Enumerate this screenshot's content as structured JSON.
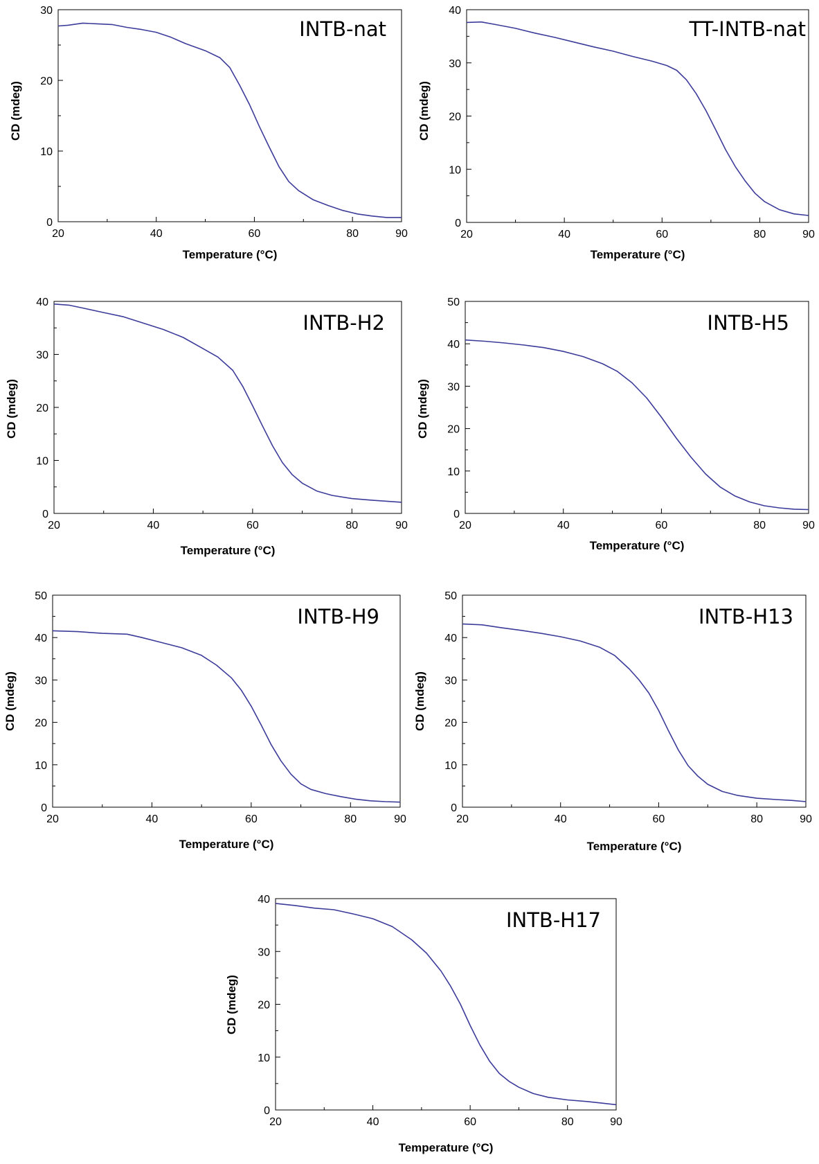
{
  "chart_data": [
    {
      "type": "line",
      "title": "INTB-nat",
      "xlabel": "Temperature (°C)",
      "ylabel": "CD (mdeg)",
      "xlim": [
        20,
        90
      ],
      "ylim": [
        0,
        30
      ],
      "xticks": [
        20,
        40,
        60,
        80,
        90
      ],
      "yticks": [
        0,
        10,
        20,
        30
      ],
      "line_color": "#3b3b9a",
      "series": [
        {
          "x": [
            20,
            22,
            25,
            28,
            31,
            34,
            37,
            40,
            43,
            46,
            50,
            53,
            55,
            57,
            59,
            61,
            63,
            65,
            67,
            69,
            72,
            75,
            78,
            81,
            84,
            87,
            90
          ],
          "values": [
            27.7,
            27.8,
            28.1,
            28.0,
            27.9,
            27.5,
            27.2,
            26.8,
            26.1,
            25.2,
            24.2,
            23.2,
            21.8,
            19.3,
            16.6,
            13.5,
            10.6,
            7.8,
            5.7,
            4.4,
            3.1,
            2.3,
            1.6,
            1.1,
            0.8,
            0.6,
            0.6
          ]
        }
      ]
    },
    {
      "type": "line",
      "title": "TT-INTB-nat",
      "xlabel": "Temperature (°C)",
      "ylabel": "CD (mdeg)",
      "xlim": [
        20,
        90
      ],
      "ylim": [
        0,
        40
      ],
      "xticks": [
        20,
        40,
        60,
        80,
        90
      ],
      "yticks": [
        0,
        10,
        20,
        30,
        40
      ],
      "line_color": "#3b3b9a",
      "series": [
        {
          "x": [
            20,
            23,
            26,
            30,
            34,
            38,
            42,
            46,
            50,
            54,
            58,
            61,
            63,
            65,
            67,
            69,
            71,
            73,
            75,
            77,
            79,
            81,
            84,
            87,
            90
          ],
          "values": [
            37.6,
            37.7,
            37.2,
            36.5,
            35.6,
            34.8,
            33.9,
            33.0,
            32.2,
            31.2,
            30.3,
            29.5,
            28.6,
            26.8,
            24.2,
            21.0,
            17.4,
            13.7,
            10.5,
            7.8,
            5.5,
            3.9,
            2.4,
            1.6,
            1.3
          ]
        }
      ]
    },
    {
      "type": "line",
      "title": "INTB-H2",
      "xlabel": "Temperature (°C)",
      "ylabel": "CD (mdeg)",
      "xlim": [
        20,
        90
      ],
      "ylim": [
        0,
        40
      ],
      "xticks": [
        20,
        40,
        60,
        80,
        90
      ],
      "yticks": [
        0,
        10,
        20,
        30,
        40
      ],
      "line_color": "#3b3b9a",
      "series": [
        {
          "x": [
            20,
            23,
            26,
            30,
            34,
            38,
            42,
            46,
            50,
            53,
            56,
            58,
            60,
            62,
            64,
            66,
            68,
            70,
            73,
            76,
            80,
            84,
            87,
            90
          ],
          "values": [
            39.5,
            39.3,
            38.7,
            37.9,
            37.1,
            35.9,
            34.7,
            33.2,
            31.1,
            29.5,
            27.0,
            24.0,
            20.3,
            16.5,
            12.8,
            9.6,
            7.3,
            5.7,
            4.2,
            3.4,
            2.8,
            2.5,
            2.3,
            2.1
          ]
        }
      ]
    },
    {
      "type": "line",
      "title": "INTB-H5",
      "xlabel": "Temperature (°C)",
      "ylabel": "CD (mdeg)",
      "xlim": [
        20,
        90
      ],
      "ylim": [
        0,
        50
      ],
      "xticks": [
        20,
        40,
        60,
        80,
        90
      ],
      "yticks": [
        0,
        10,
        20,
        30,
        40,
        50
      ],
      "line_color": "#3b3b9a",
      "series": [
        {
          "x": [
            20,
            24,
            28,
            32,
            36,
            40,
            44,
            48,
            51,
            54,
            57,
            60,
            63,
            66,
            69,
            72,
            75,
            78,
            81,
            84,
            87,
            90
          ],
          "values": [
            40.9,
            40.6,
            40.2,
            39.7,
            39.1,
            38.2,
            37.0,
            35.3,
            33.5,
            30.8,
            27.2,
            22.7,
            17.8,
            13.3,
            9.3,
            6.2,
            4.1,
            2.7,
            1.8,
            1.3,
            1.0,
            0.9
          ]
        }
      ]
    },
    {
      "type": "line",
      "title": "INTB-H9",
      "xlabel": "Temperature (°C)",
      "ylabel": "CD (mdeg)",
      "xlim": [
        20,
        90
      ],
      "ylim": [
        0,
        50
      ],
      "xticks": [
        20,
        40,
        60,
        80,
        90
      ],
      "yticks": [
        0,
        10,
        20,
        30,
        40,
        50
      ],
      "line_color": "#3b3b9a",
      "series": [
        {
          "x": [
            20,
            25,
            30,
            35,
            38,
            42,
            46,
            50,
            53,
            56,
            58,
            60,
            62,
            64,
            66,
            68,
            70,
            72,
            75,
            78,
            81,
            84,
            87,
            90
          ],
          "values": [
            41.6,
            41.4,
            41.0,
            40.8,
            40.0,
            38.8,
            37.6,
            35.8,
            33.5,
            30.5,
            27.6,
            23.8,
            19.4,
            14.8,
            10.9,
            7.8,
            5.5,
            4.2,
            3.2,
            2.5,
            1.9,
            1.5,
            1.3,
            1.2
          ]
        }
      ]
    },
    {
      "type": "line",
      "title": "INTB-H13",
      "xlabel": "Temperature (°C)",
      "ylabel": "CD (mdeg)",
      "xlim": [
        20,
        90
      ],
      "ylim": [
        0,
        50
      ],
      "xticks": [
        20,
        40,
        60,
        80,
        90
      ],
      "yticks": [
        0,
        10,
        20,
        30,
        40,
        50
      ],
      "line_color": "#3b3b9a",
      "series": [
        {
          "x": [
            20,
            24,
            28,
            32,
            36,
            40,
            44,
            48,
            51,
            54,
            56,
            58,
            60,
            62,
            64,
            66,
            68,
            70,
            73,
            76,
            80,
            84,
            87,
            90
          ],
          "values": [
            43.2,
            43.0,
            42.3,
            41.7,
            41.0,
            40.2,
            39.2,
            37.7,
            35.8,
            32.6,
            30.0,
            26.9,
            22.8,
            18.0,
            13.5,
            9.8,
            7.3,
            5.4,
            3.7,
            2.8,
            2.1,
            1.8,
            1.6,
            1.3
          ]
        }
      ]
    },
    {
      "type": "line",
      "title": "INTB-H17",
      "xlabel": "Temperature (°C)",
      "ylabel": "CD (mdeg)",
      "xlim": [
        20,
        90
      ],
      "ylim": [
        0,
        40
      ],
      "xticks": [
        20,
        40,
        60,
        80,
        90
      ],
      "yticks": [
        0,
        10,
        20,
        30,
        40
      ],
      "line_color": "#3b3b9a",
      "series": [
        {
          "x": [
            20,
            24,
            28,
            32,
            36,
            40,
            44,
            48,
            51,
            54,
            56,
            58,
            60,
            62,
            64,
            66,
            68,
            70,
            73,
            76,
            80,
            84,
            87,
            90
          ],
          "values": [
            39.1,
            38.7,
            38.2,
            37.9,
            37.1,
            36.2,
            34.7,
            32.2,
            29.7,
            26.3,
            23.4,
            20.0,
            16.0,
            12.3,
            9.2,
            6.9,
            5.4,
            4.3,
            3.1,
            2.4,
            1.9,
            1.6,
            1.3,
            1.0
          ]
        }
      ]
    }
  ]
}
